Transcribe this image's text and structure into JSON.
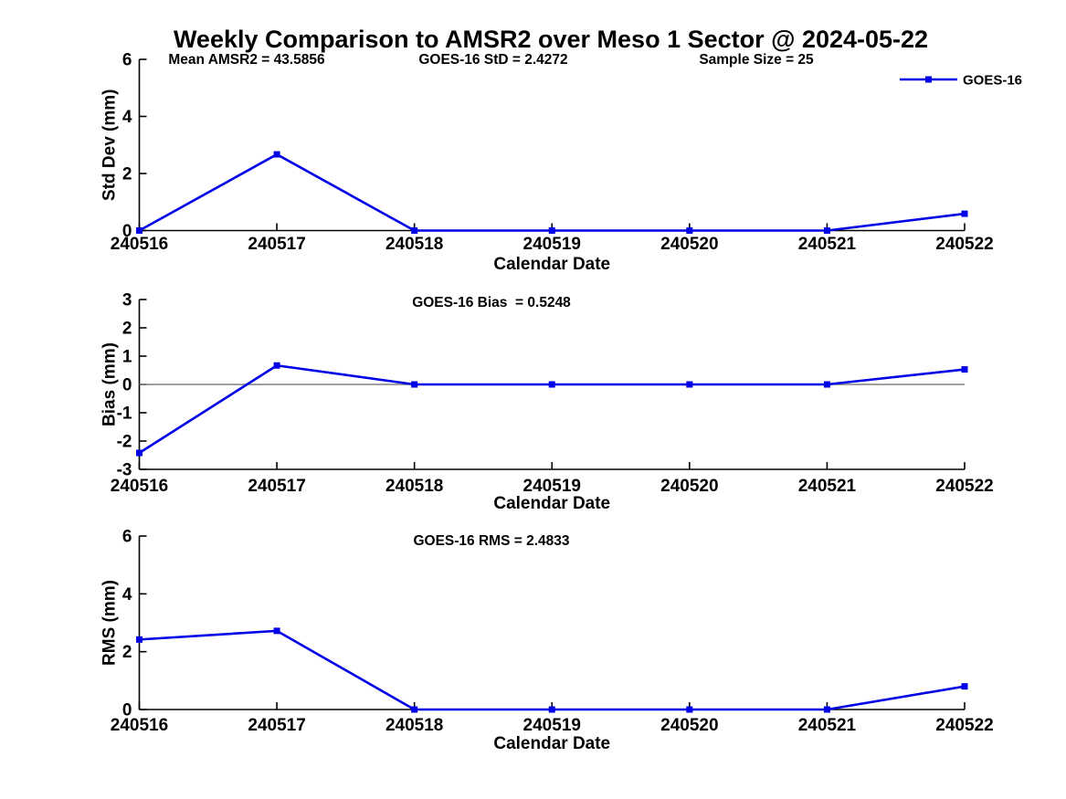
{
  "title": "Weekly Comparison to AMSR2 over Meso 1 Sector @ 2024-05-22",
  "legend": {
    "label": "GOES-16"
  },
  "colors": {
    "line": "#0000E8",
    "marker": "#0000E8",
    "zero_line": "#808080",
    "axis": "#000000",
    "text": "#000000"
  },
  "chart_data": [
    {
      "type": "line",
      "name": "std-dev-subplot",
      "annotations": [
        "Mean AMSR2 = 43.5856",
        "GOES-16 StD = 2.4272",
        "Sample Size = 25"
      ],
      "categories": [
        "240516",
        "240517",
        "240518",
        "240519",
        "240520",
        "240521",
        "240522"
      ],
      "series": [
        {
          "name": "GOES-16",
          "values": [
            0,
            2.67,
            0,
            0,
            0,
            0,
            0.59
          ]
        }
      ],
      "xlabel": "Calendar Date",
      "ylabel": "Std Dev (mm)",
      "ylim": [
        0,
        6
      ],
      "yticks": [
        0,
        2,
        4,
        6
      ],
      "grid": false,
      "zero_line": false,
      "legend_position": "top-right",
      "marker": "square"
    },
    {
      "type": "line",
      "name": "bias-subplot",
      "annotations": [
        "GOES-16 Bias  = 0.5248"
      ],
      "categories": [
        "240516",
        "240517",
        "240518",
        "240519",
        "240520",
        "240521",
        "240522"
      ],
      "series": [
        {
          "name": "GOES-16",
          "values": [
            -2.42,
            0.67,
            0,
            0,
            0,
            0,
            0.53
          ]
        }
      ],
      "xlabel": "Calendar Date",
      "ylabel": "Bias (mm)",
      "ylim": [
        -3,
        3
      ],
      "yticks": [
        -3,
        -2,
        -1,
        0,
        1,
        2,
        3
      ],
      "grid": false,
      "zero_line": true,
      "legend_position": "none",
      "marker": "square"
    },
    {
      "type": "line",
      "name": "rms-subplot",
      "annotations": [
        "GOES-16 RMS = 2.4833"
      ],
      "categories": [
        "240516",
        "240517",
        "240518",
        "240519",
        "240520",
        "240521",
        "240522"
      ],
      "series": [
        {
          "name": "GOES-16",
          "values": [
            2.42,
            2.72,
            0,
            0,
            0,
            0,
            0.8
          ]
        }
      ],
      "xlabel": "Calendar Date",
      "ylabel": "RMS (mm)",
      "ylim": [
        0,
        6
      ],
      "yticks": [
        0,
        2,
        4,
        6
      ],
      "grid": false,
      "zero_line": false,
      "legend_position": "none",
      "marker": "square"
    }
  ]
}
